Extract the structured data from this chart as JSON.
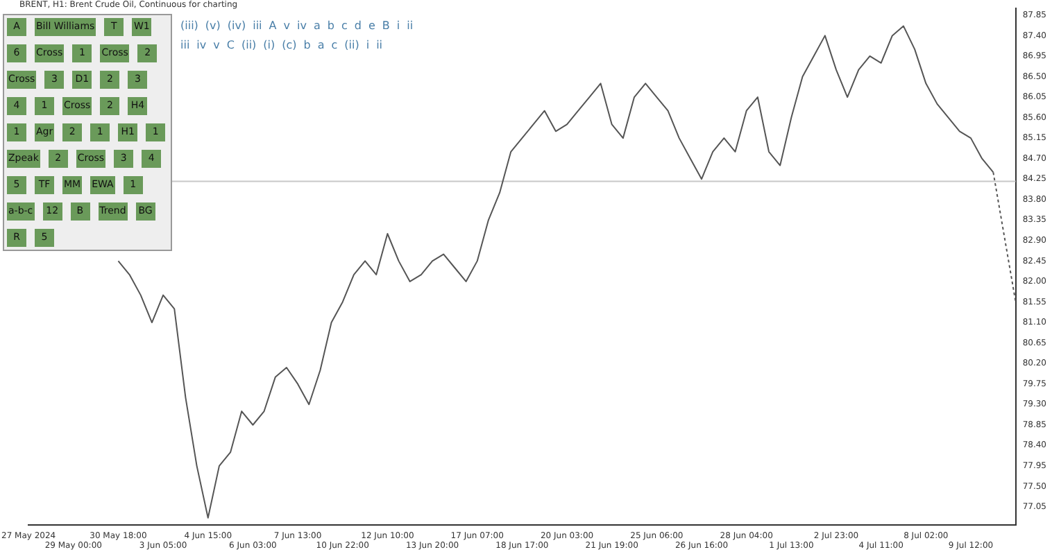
{
  "chart_data": {
    "type": "line",
    "title": "BRENT, H1: Brent Crude Oil, Continuous for charting",
    "categories": [
      "27 May 2024",
      null,
      null,
      null,
      "29 May 00:00",
      null,
      null,
      null,
      "30 May 18:00",
      null,
      null,
      null,
      "3 Jun 05:00",
      null,
      null,
      null,
      "4 Jun 15:00",
      null,
      null,
      null,
      "6 Jun 03:00",
      null,
      null,
      null,
      "7 Jun 13:00",
      null,
      null,
      null,
      "10 Jun 22:00",
      null,
      null,
      null,
      "12 Jun 10:00",
      null,
      null,
      null,
      "13 Jun 20:00",
      null,
      null,
      null,
      "17 Jun 07:00",
      null,
      null,
      null,
      "18 Jun 17:00",
      null,
      null,
      null,
      "20 Jun 03:00",
      null,
      null,
      null,
      "21 Jun 19:00",
      null,
      null,
      null,
      "25 Jun 06:00",
      null,
      null,
      null,
      "26 Jun 16:00",
      null,
      null,
      null,
      "28 Jun 04:00",
      null,
      null,
      null,
      "1 Jul 13:00",
      null,
      null,
      null,
      "2 Jul 23:00",
      null,
      null,
      null,
      "4 Jul 11:00",
      null,
      null,
      null,
      "8 Jul 02:00",
      null,
      null,
      null,
      "9 Jul 12:00",
      null,
      null,
      null,
      null
    ],
    "series": [
      {
        "color": "#555555",
        "line_style": "solid",
        "values": [
          null,
          null,
          null,
          null,
          null,
          null,
          null,
          null,
          82.45,
          82.15,
          81.7,
          81.1,
          81.7,
          81.4,
          79.45,
          77.95,
          76.81,
          77.95,
          78.25,
          79.15,
          78.85,
          79.15,
          79.9,
          80.11,
          79.75,
          79.3,
          80.05,
          81.1,
          81.55,
          82.15,
          82.45,
          82.15,
          83.05,
          82.45,
          82.0,
          82.15,
          82.45,
          82.6,
          82.3,
          82.0,
          82.45,
          83.35,
          83.95,
          84.85,
          85.15,
          85.45,
          85.75,
          85.3,
          85.45,
          85.75,
          86.05,
          86.35,
          85.45,
          85.15,
          86.05,
          86.35,
          86.05,
          85.75,
          85.15,
          84.7,
          84.25,
          84.85,
          85.15,
          84.85,
          85.75,
          86.05,
          84.85,
          84.55,
          85.6,
          86.5,
          86.95,
          87.4,
          86.65,
          86.05,
          86.65,
          86.95,
          86.8,
          87.4,
          87.61,
          87.1,
          86.35,
          85.9,
          85.6,
          85.3,
          85.15,
          84.7,
          84.4,
          null,
          null
        ]
      },
      {
        "color": "#555555",
        "line_style": "dotted",
        "values": [
          null,
          null,
          null,
          null,
          null,
          null,
          null,
          null,
          null,
          null,
          null,
          null,
          null,
          null,
          null,
          null,
          null,
          null,
          null,
          null,
          null,
          null,
          null,
          null,
          null,
          null,
          null,
          null,
          null,
          null,
          null,
          null,
          null,
          null,
          null,
          null,
          null,
          null,
          null,
          null,
          null,
          null,
          null,
          null,
          null,
          null,
          null,
          null,
          null,
          null,
          null,
          null,
          null,
          null,
          null,
          null,
          null,
          null,
          null,
          null,
          null,
          null,
          null,
          null,
          null,
          null,
          null,
          null,
          null,
          null,
          null,
          null,
          null,
          null,
          null,
          null,
          null,
          null,
          null,
          null,
          null,
          null,
          null,
          null,
          null,
          null,
          84.4,
          null,
          81.55
        ]
      }
    ],
    "ylim": [
      76.65,
      88.0
    ],
    "yticks": [
      77.05,
      {
        "value": 77.5,
        "label": "77.50"
      },
      77.95,
      {
        "value": 78.4,
        "label": "78.40"
      },
      78.85,
      {
        "value": 79.3,
        "label": "79.30"
      },
      79.75,
      {
        "value": 80.2,
        "label": "80.20"
      },
      80.65,
      {
        "value": 81.1,
        "label": "81.10"
      },
      81.55,
      {
        "value": 82,
        "label": "82.00"
      },
      82.45,
      {
        "value": 82.9,
        "label": "82.90"
      },
      83.35,
      {
        "value": 83.8,
        "label": "83.80"
      },
      84.25,
      {
        "value": 84.7,
        "label": "84.70"
      },
      85.15,
      {
        "value": 85.6,
        "label": "85.60"
      },
      86.05,
      {
        "value": 86.5,
        "label": "86.50"
      },
      86.95,
      {
        "value": 87.4,
        "label": "87.40"
      },
      87.85
    ],
    "grid": false,
    "legend": false,
    "marker": "none",
    "ref_lines": [
      {
        "axis": "y",
        "value": 84.2,
        "color": "#c8c8c8"
      }
    ],
    "annotations": [
      "A",
      "Bill Williams",
      "T",
      "W1",
      "6",
      "Cross",
      "1",
      "Cross",
      "2",
      "Cross",
      "3",
      "D1",
      "2",
      "3",
      "4",
      "1",
      "Cross",
      "2",
      "H4",
      "1",
      "Agr",
      "2",
      "1",
      "H1",
      "1",
      "Zpeak",
      "2",
      "Cross",
      "3",
      "4",
      "5",
      "TF",
      "MM",
      "EWA",
      "1",
      "a-b-c",
      "12",
      "B",
      "Trend",
      "BG",
      "R",
      "5",
      "(iii)",
      "(v)",
      "(iv)",
      "iii",
      "A",
      "v",
      "iv",
      "a",
      "b",
      "c",
      "d",
      "e",
      "B",
      "i",
      "ii",
      "iii",
      "iv",
      "v",
      "C",
      "(ii)",
      "(i)",
      "(c)",
      "b",
      "a",
      "c",
      "(ii)",
      "i",
      "ii"
    ]
  }
}
